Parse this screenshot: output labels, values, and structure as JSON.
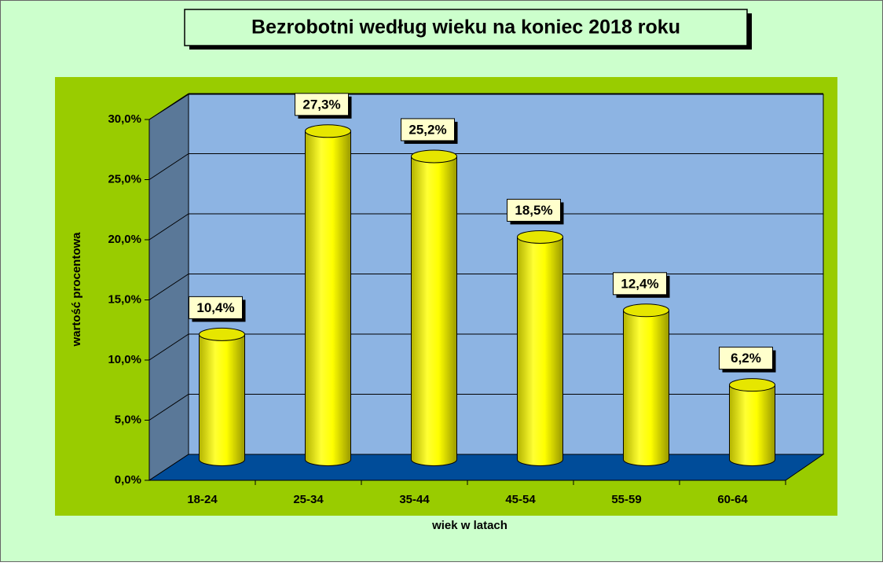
{
  "chart_data": {
    "type": "bar3d",
    "title": "Bezrobotni według wieku na koniec 2018 roku",
    "x_label": "wiek w latach",
    "y_label": "wartość procentowa",
    "categories": [
      "18-24",
      "25-34",
      "35-44",
      "45-54",
      "55-59",
      "60-64"
    ],
    "values": [
      10.4,
      27.3,
      25.2,
      18.5,
      12.4,
      6.2
    ],
    "value_labels": [
      "10,4%",
      "27,3%",
      "25,2%",
      "18,5%",
      "12,4%",
      "6,2%"
    ],
    "color": "#ffff00",
    "ylim": [
      0,
      30
    ],
    "yticks": [
      {
        "value": 0,
        "label": "0,0%"
      },
      {
        "value": 5,
        "label": "5,0%"
      },
      {
        "value": 10,
        "label": "10,0%"
      },
      {
        "value": 15,
        "label": "15,0%"
      },
      {
        "value": 20,
        "label": "20,0%"
      },
      {
        "value": 25,
        "label": "25,0%"
      },
      {
        "value": 30,
        "label": "30,0%"
      }
    ],
    "grid": true
  }
}
